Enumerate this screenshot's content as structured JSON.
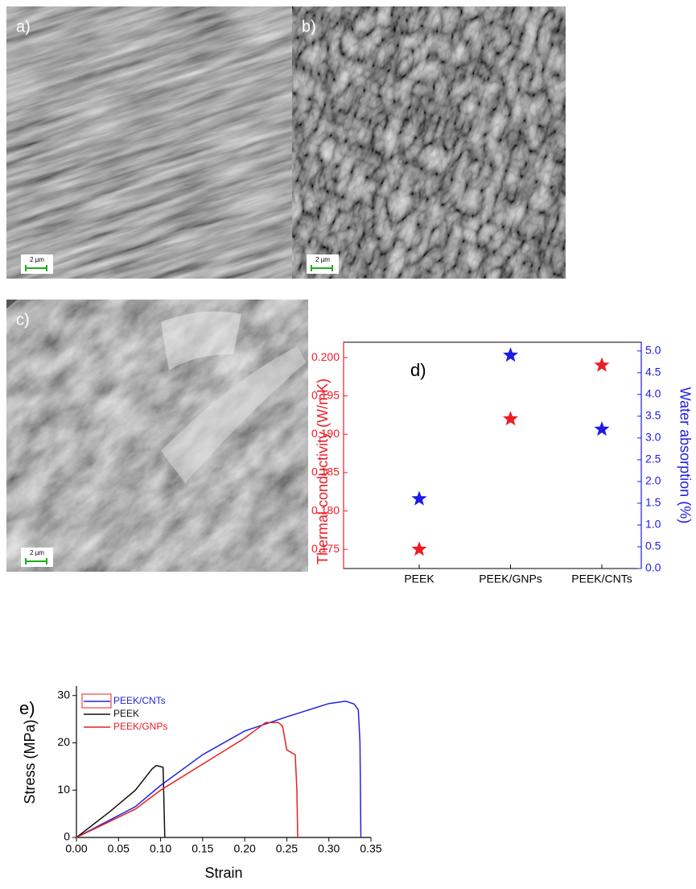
{
  "images": [
    {
      "label": "a)",
      "scale": "2 µm"
    },
    {
      "label": "b)",
      "scale": "2 µm"
    },
    {
      "label": "c)",
      "scale": "2 µm"
    }
  ],
  "chart_data": [
    {
      "type": "scatter",
      "annotation": "d)",
      "categories": [
        "PEEK",
        "PEEK/GNPs",
        "PEEK/CNTs"
      ],
      "ylabel": "Thermal conductivity (W/mK)",
      "y2label": "Water absorption (%)",
      "ylim": [
        0.1725,
        0.202
      ],
      "yticks": [
        0.175,
        {
          "value": 0.18,
          "label": "0.180"
        },
        0.185,
        {
          "value": 0.19,
          "label": "0.190"
        },
        0.195,
        {
          "value": 0.2,
          "label": "0.200"
        }
      ],
      "y2lim": [
        0,
        5.2
      ],
      "y2ticks": [
        {
          "value": 0,
          "label": "0.0"
        },
        0.5,
        {
          "value": 1,
          "label": "1.0"
        },
        1.5,
        {
          "value": 2,
          "label": "2.0"
        },
        2.5,
        {
          "value": 3,
          "label": "3.0"
        },
        3.5,
        {
          "value": 4,
          "label": "4.0"
        },
        4.5,
        {
          "value": 5,
          "label": "5.0"
        }
      ],
      "series": [
        {
          "color": "#ee1c25",
          "marker": "star",
          "values": [
            0.175,
            0.192,
            0.199
          ]
        },
        {
          "color": "#1c1ce6",
          "marker": "star",
          "axis": "y2",
          "values": [
            1.6,
            4.9,
            3.2
          ]
        }
      ]
    },
    {
      "type": "line",
      "annotation": "e)",
      "xlabel": "Strain",
      "ylabel": "Stress (MPa)",
      "xlim": [
        0,
        0.35
      ],
      "ylim": [
        0,
        32
      ],
      "xticks": [
        {
          "value": 0,
          "label": "0.00"
        },
        0.05,
        {
          "value": 0.1,
          "label": "0.10"
        },
        0.15,
        {
          "value": 0.2,
          "label": "0.20"
        },
        0.25,
        {
          "value": 0.3,
          "label": "0.30"
        },
        0.35
      ],
      "yticks": [
        0,
        10,
        20,
        30
      ],
      "series": [
        {
          "name": "PEEK/CNTs",
          "color": "#2222e0",
          "x": [
            0,
            0.07,
            0.1,
            0.15,
            0.2,
            0.25,
            0.3,
            0.32,
            0.33,
            0.335,
            0.337,
            0.338
          ],
          "values": [
            0,
            6.5,
            11,
            17.5,
            22.5,
            25.5,
            28.3,
            28.8,
            28.2,
            27,
            20,
            0
          ]
        },
        {
          "name": "PEEK",
          "color": "#111111",
          "x": [
            0,
            0.04,
            0.07,
            0.09,
            0.095,
            0.1,
            0.103,
            0.105
          ],
          "values": [
            0,
            5.5,
            10,
            14.5,
            15.2,
            15,
            14.8,
            0
          ]
        },
        {
          "name": "PEEK/GNPs",
          "color": "#e82020",
          "x": [
            0,
            0.07,
            0.1,
            0.15,
            0.2,
            0.225,
            0.24,
            0.245,
            0.25,
            0.26,
            0.262,
            0.263
          ],
          "values": [
            0,
            6,
            10,
            15.5,
            21,
            24.3,
            24.3,
            23.5,
            18.5,
            17.5,
            10,
            0
          ]
        }
      ]
    }
  ]
}
